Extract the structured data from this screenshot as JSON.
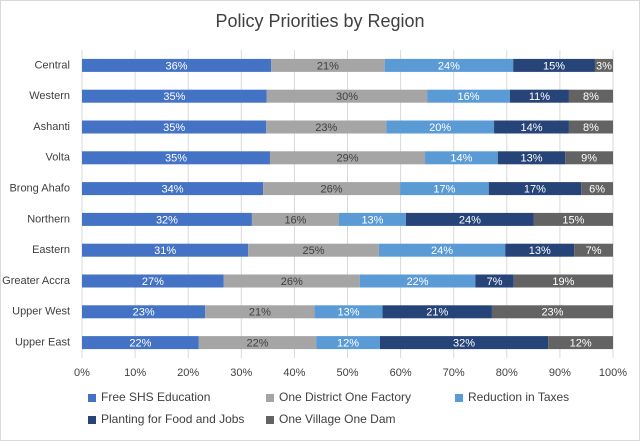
{
  "chart_data": {
    "type": "stacked_barh",
    "title": "Policy Priorities by Region",
    "categories": [
      "Central",
      "Western",
      "Ashanti",
      "Volta",
      "Brong Ahafo",
      "Northern",
      "Eastern",
      "Greater Accra",
      "Upper West",
      "Upper East"
    ],
    "series": [
      {
        "name": "Free SHS Education",
        "color": "#4472c4",
        "values": [
          35.6,
          34.8,
          34.7,
          35.4,
          34.1,
          32.0,
          31.3,
          26.7,
          23.2,
          22.0
        ],
        "value_labels": [
          "36%",
          "35%",
          "35%",
          "35%",
          "34%",
          "32%",
          "31%",
          "27%",
          "23%",
          "22%"
        ]
      },
      {
        "name": "One District One Factory",
        "color": "#a5a5a5",
        "values": [
          21.4,
          30.2,
          22.6,
          29.2,
          25.8,
          16.4,
          24.6,
          25.6,
          20.6,
          22.1
        ],
        "value_labels": [
          "21%",
          "30%",
          "23%",
          "29%",
          "26%",
          "16%",
          "25%",
          "26%",
          "21%",
          "22%"
        ]
      },
      {
        "name": "Reduction in Taxes",
        "color": "#5b9bd5",
        "values": [
          24.2,
          15.6,
          20.3,
          13.7,
          16.7,
          12.6,
          23.8,
          21.8,
          12.8,
          12.0
        ],
        "value_labels": [
          "24%",
          "16%",
          "20%",
          "14%",
          "17%",
          "13%",
          "24%",
          "22%",
          "13%",
          "12%"
        ]
      },
      {
        "name": "Planting for Food and Jobs",
        "color": "#264478",
        "values": [
          15.4,
          11.1,
          14.1,
          12.7,
          17.4,
          24.1,
          13.0,
          7.2,
          20.6,
          31.7
        ],
        "value_labels": [
          "15%",
          "11%",
          "14%",
          "13%",
          "17%",
          "24%",
          "13%",
          "7%",
          "21%",
          "32%"
        ]
      },
      {
        "name": "One Village One Dam",
        "color": "#636363",
        "values": [
          3.4,
          8.3,
          8.3,
          9.0,
          6.0,
          14.9,
          7.3,
          18.7,
          22.8,
          12.2
        ],
        "value_labels": [
          "3%",
          "8%",
          "8%",
          "9%",
          "6%",
          "15%",
          "7%",
          "19%",
          "23%",
          "12%"
        ]
      }
    ],
    "xlim": [
      0,
      100
    ],
    "xticks": [
      {
        "value": 0,
        "label": "0%"
      },
      {
        "value": 10,
        "label": "10%"
      },
      {
        "value": 20,
        "label": "20%"
      },
      {
        "value": 30,
        "label": "30%"
      },
      {
        "value": 40,
        "label": "40%"
      },
      {
        "value": 50,
        "label": "50%"
      },
      {
        "value": 60,
        "label": "60%"
      },
      {
        "value": 70,
        "label": "70%"
      },
      {
        "value": 80,
        "label": "80%"
      },
      {
        "value": 90,
        "label": "90%"
      },
      {
        "value": 100,
        "label": "100%"
      }
    ],
    "legend": "bottom"
  }
}
